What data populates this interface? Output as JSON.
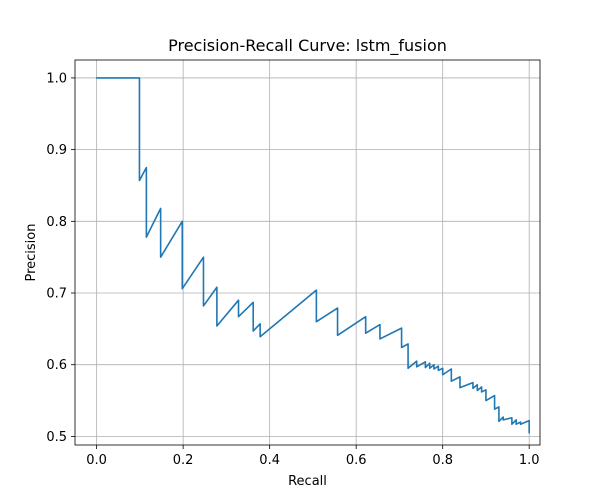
{
  "chart_data": {
    "type": "line",
    "title": "Precision-Recall Curve: lstm_fusion",
    "xlabel": "Recall",
    "ylabel": "Precision",
    "xlim": [
      -0.05,
      1.025
    ],
    "ylim": [
      0.488,
      1.025
    ],
    "xticks": [
      0.0,
      0.2,
      0.4,
      0.6,
      0.8,
      1.0
    ],
    "xtick_labels": [
      "0.0",
      "0.2",
      "0.4",
      "0.6",
      "0.8",
      "1.0"
    ],
    "yticks": [
      0.5,
      0.6,
      0.7,
      0.8,
      0.9,
      1.0
    ],
    "ytick_labels": [
      "0.5",
      "0.6",
      "0.7",
      "0.8",
      "0.9",
      "1.0"
    ],
    "grid": true,
    "color": "#1f77b4",
    "series": [
      {
        "x": [
          0.0,
          0.099,
          0.099,
          0.115,
          0.115,
          0.148,
          0.148,
          0.198,
          0.198,
          0.247,
          0.247,
          0.278,
          0.278,
          0.328,
          0.328,
          0.362,
          0.362,
          0.378,
          0.378,
          0.508,
          0.508,
          0.557,
          0.557,
          0.622,
          0.622,
          0.655,
          0.655,
          0.705,
          0.705,
          0.72,
          0.72,
          0.74,
          0.74,
          0.76,
          0.76,
          0.77,
          0.77,
          0.78,
          0.78,
          0.79,
          0.79,
          0.8,
          0.8,
          0.82,
          0.82,
          0.84,
          0.84,
          0.87,
          0.87,
          0.88,
          0.88,
          0.89,
          0.89,
          0.9,
          0.9,
          0.92,
          0.92,
          0.93,
          0.93,
          0.94,
          0.94,
          0.96,
          0.96,
          0.97,
          0.97,
          0.98,
          0.98,
          1.0,
          1.0
        ],
        "y": [
          1.0,
          1.0,
          0.857,
          0.875,
          0.778,
          0.818,
          0.75,
          0.8,
          0.706,
          0.75,
          0.682,
          0.708,
          0.654,
          0.69,
          0.667,
          0.687,
          0.647,
          0.657,
          0.639,
          0.704,
          0.66,
          0.679,
          0.641,
          0.667,
          0.644,
          0.656,
          0.636,
          0.651,
          0.624,
          0.629,
          0.595,
          0.605,
          0.597,
          0.604,
          0.596,
          0.602,
          0.595,
          0.6,
          0.594,
          0.598,
          0.592,
          0.595,
          0.586,
          0.594,
          0.577,
          0.583,
          0.568,
          0.575,
          0.567,
          0.572,
          0.564,
          0.569,
          0.562,
          0.565,
          0.55,
          0.557,
          0.538,
          0.541,
          0.521,
          0.527,
          0.523,
          0.526,
          0.517,
          0.523,
          0.517,
          0.52,
          0.517,
          0.522,
          0.505
        ]
      }
    ]
  }
}
